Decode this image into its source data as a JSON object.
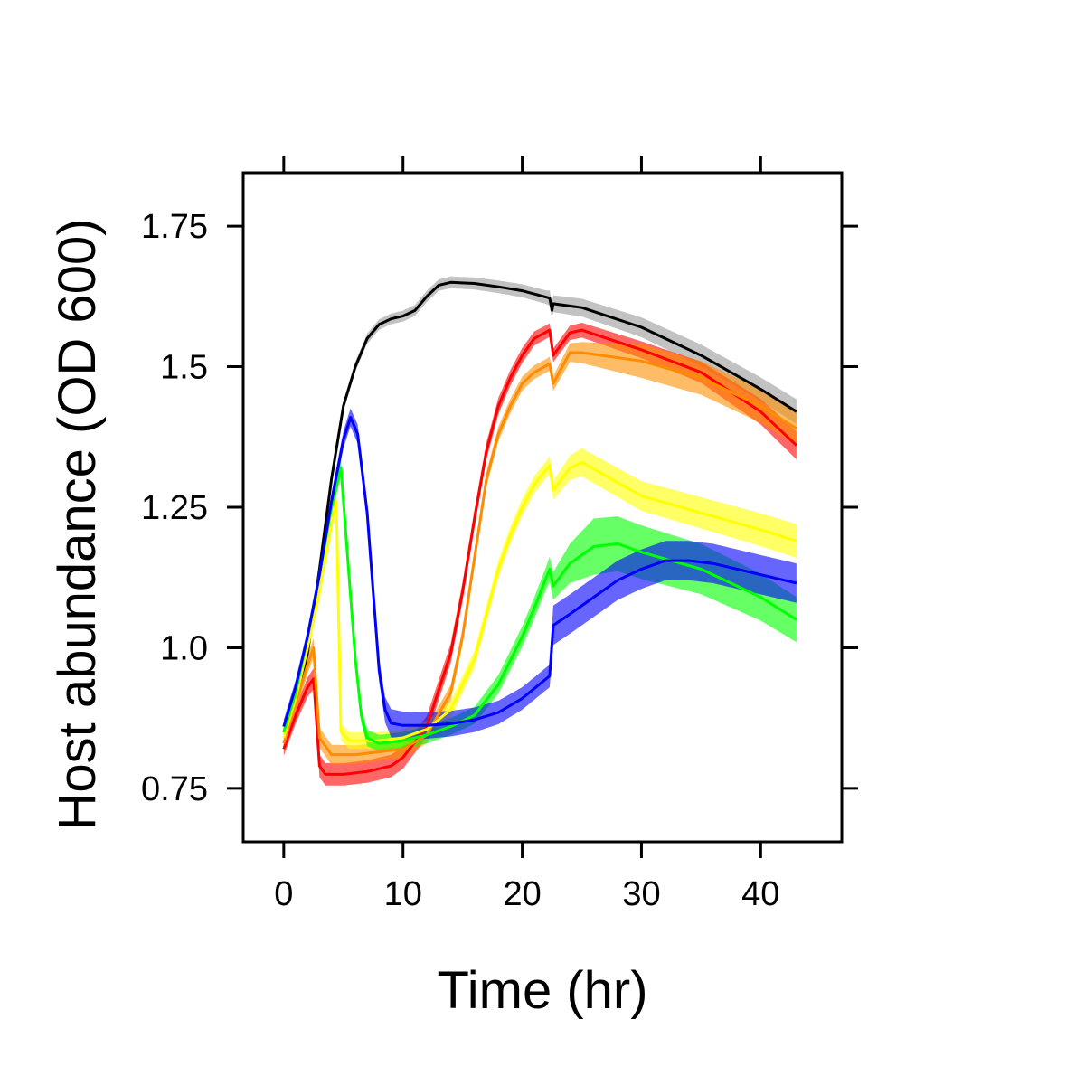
{
  "chart_data": {
    "type": "line",
    "title": "",
    "xlabel": "Time (hr)",
    "ylabel": "Host abundance (OD 600)",
    "xlim": [
      -3.4,
      46.8
    ],
    "ylim": [
      0.655,
      1.845
    ],
    "xticks": [
      0,
      10,
      20,
      30,
      40
    ],
    "xtick_labels": [
      "0",
      "10",
      "20",
      "30",
      "40"
    ],
    "yticks": [
      0.75,
      1.0,
      1.25,
      1.5,
      1.75
    ],
    "ytick_labels": [
      "0.75",
      "1.0",
      "1.25",
      "1.5",
      "1.75"
    ],
    "grid": false,
    "legend": "none",
    "series": [
      {
        "color": "#000000",
        "band_color": "#9a9a9a",
        "points": [
          [
            0,
            0.85
          ],
          [
            1,
            0.9
          ],
          [
            2,
            0.99
          ],
          [
            3,
            1.14
          ],
          [
            4,
            1.3
          ],
          [
            5,
            1.43
          ],
          [
            6,
            1.5
          ],
          [
            7,
            1.55
          ],
          [
            8,
            1.575
          ],
          [
            9,
            1.585
          ],
          [
            10,
            1.59
          ],
          [
            11,
            1.6
          ],
          [
            12,
            1.625
          ],
          [
            13,
            1.645
          ],
          [
            14,
            1.65
          ],
          [
            16,
            1.648
          ],
          [
            18,
            1.642
          ],
          [
            20,
            1.635
          ],
          [
            22.3,
            1.622
          ],
          [
            22.5,
            1.6
          ],
          [
            22.6,
            1.612
          ],
          [
            25,
            1.605
          ],
          [
            30,
            1.57
          ],
          [
            35,
            1.52
          ],
          [
            40,
            1.46
          ],
          [
            43,
            1.42
          ]
        ],
        "band": [
          [
            0,
            0.008
          ],
          [
            12,
            0.01
          ],
          [
            22,
            0.012
          ],
          [
            22.6,
            0.015
          ],
          [
            43,
            0.022
          ]
        ]
      },
      {
        "color": "#ff0000",
        "band_color": "#ff0000",
        "points": [
          [
            0,
            0.82
          ],
          [
            1,
            0.88
          ],
          [
            2,
            0.93
          ],
          [
            2.5,
            0.945
          ],
          [
            3,
            0.79
          ],
          [
            3.5,
            0.775
          ],
          [
            5,
            0.775
          ],
          [
            7,
            0.78
          ],
          [
            9,
            0.79
          ],
          [
            10,
            0.805
          ],
          [
            12,
            0.86
          ],
          [
            14,
            0.99
          ],
          [
            15,
            1.1
          ],
          [
            16,
            1.23
          ],
          [
            17,
            1.35
          ],
          [
            18,
            1.43
          ],
          [
            19,
            1.48
          ],
          [
            20,
            1.52
          ],
          [
            21,
            1.55
          ],
          [
            22.3,
            1.565
          ],
          [
            22.6,
            1.52
          ],
          [
            24,
            1.56
          ],
          [
            25,
            1.565
          ],
          [
            30,
            1.53
          ],
          [
            35,
            1.49
          ],
          [
            40,
            1.42
          ],
          [
            43,
            1.36
          ]
        ],
        "band": [
          [
            0,
            0.012
          ],
          [
            3,
            0.02
          ],
          [
            10,
            0.02
          ],
          [
            22,
            0.012
          ],
          [
            30,
            0.015
          ],
          [
            43,
            0.025
          ]
        ]
      },
      {
        "color": "#ff8c00",
        "band_color": "#ff9000",
        "points": [
          [
            0,
            0.83
          ],
          [
            1,
            0.9
          ],
          [
            2,
            0.97
          ],
          [
            2.5,
            1.0
          ],
          [
            3,
            0.84
          ],
          [
            4,
            0.81
          ],
          [
            6,
            0.81
          ],
          [
            8,
            0.815
          ],
          [
            10,
            0.82
          ],
          [
            12,
            0.845
          ],
          [
            14,
            0.92
          ],
          [
            15,
            1.02
          ],
          [
            16,
            1.16
          ],
          [
            17,
            1.3
          ],
          [
            18,
            1.38
          ],
          [
            19,
            1.43
          ],
          [
            20,
            1.47
          ],
          [
            21,
            1.49
          ],
          [
            22.3,
            1.505
          ],
          [
            22.6,
            1.47
          ],
          [
            24,
            1.525
          ],
          [
            25,
            1.525
          ],
          [
            30,
            1.51
          ],
          [
            35,
            1.48
          ],
          [
            40,
            1.43
          ],
          [
            43,
            1.39
          ]
        ],
        "band": [
          [
            0,
            0.012
          ],
          [
            3,
            0.018
          ],
          [
            10,
            0.015
          ],
          [
            22,
            0.012
          ],
          [
            30,
            0.03
          ],
          [
            43,
            0.03
          ]
        ]
      },
      {
        "color": "#ffff00",
        "band_color": "#ffff00",
        "points": [
          [
            0,
            0.84
          ],
          [
            1,
            0.91
          ],
          [
            2,
            1.0
          ],
          [
            3,
            1.1
          ],
          [
            4,
            1.22
          ],
          [
            4.4,
            1.26
          ],
          [
            4.8,
            0.85
          ],
          [
            5.5,
            0.835
          ],
          [
            8,
            0.835
          ],
          [
            10,
            0.84
          ],
          [
            12,
            0.855
          ],
          [
            14,
            0.89
          ],
          [
            16,
            0.98
          ],
          [
            17,
            1.06
          ],
          [
            18,
            1.14
          ],
          [
            19,
            1.2
          ],
          [
            20,
            1.25
          ],
          [
            21,
            1.29
          ],
          [
            22.3,
            1.325
          ],
          [
            22.6,
            1.28
          ],
          [
            24,
            1.32
          ],
          [
            25,
            1.33
          ],
          [
            30,
            1.27
          ],
          [
            35,
            1.24
          ],
          [
            40,
            1.21
          ],
          [
            43,
            1.19
          ]
        ],
        "band": [
          [
            0,
            0.012
          ],
          [
            5,
            0.015
          ],
          [
            12,
            0.015
          ],
          [
            22,
            0.015
          ],
          [
            25,
            0.025
          ],
          [
            43,
            0.03
          ]
        ]
      },
      {
        "color": "#00ff00",
        "band_color": "#00ff00",
        "points": [
          [
            0,
            0.85
          ],
          [
            1,
            0.92
          ],
          [
            2,
            1.02
          ],
          [
            3,
            1.13
          ],
          [
            4,
            1.25
          ],
          [
            4.8,
            1.32
          ],
          [
            5.5,
            1.12
          ],
          [
            6,
            0.98
          ],
          [
            6.5,
            0.88
          ],
          [
            7,
            0.84
          ],
          [
            8,
            0.83
          ],
          [
            10,
            0.835
          ],
          [
            12,
            0.845
          ],
          [
            14,
            0.86
          ],
          [
            16,
            0.88
          ],
          [
            18,
            0.935
          ],
          [
            20,
            1.02
          ],
          [
            21,
            1.07
          ],
          [
            22.3,
            1.14
          ],
          [
            22.6,
            1.11
          ],
          [
            24,
            1.15
          ],
          [
            26,
            1.18
          ],
          [
            28,
            1.185
          ],
          [
            30,
            1.17
          ],
          [
            35,
            1.14
          ],
          [
            40,
            1.09
          ],
          [
            43,
            1.05
          ]
        ],
        "band": [
          [
            0,
            0.012
          ],
          [
            8,
            0.015
          ],
          [
            16,
            0.015
          ],
          [
            22,
            0.02
          ],
          [
            26,
            0.05
          ],
          [
            43,
            0.04
          ]
        ]
      },
      {
        "color": "#0000ff",
        "band_color": "#0000ff",
        "points": [
          [
            0,
            0.86
          ],
          [
            1,
            0.93
          ],
          [
            2,
            1.02
          ],
          [
            3,
            1.13
          ],
          [
            4,
            1.26
          ],
          [
            5,
            1.37
          ],
          [
            5.6,
            1.41
          ],
          [
            6.2,
            1.38
          ],
          [
            7,
            1.24
          ],
          [
            7.5,
            1.1
          ],
          [
            8,
            0.96
          ],
          [
            8.5,
            0.89
          ],
          [
            9,
            0.866
          ],
          [
            10,
            0.862
          ],
          [
            12,
            0.862
          ],
          [
            14,
            0.865
          ],
          [
            16,
            0.872
          ],
          [
            18,
            0.885
          ],
          [
            20,
            0.91
          ],
          [
            22.3,
            0.95
          ],
          [
            22.6,
            1.04
          ],
          [
            24,
            1.06
          ],
          [
            26,
            1.09
          ],
          [
            28,
            1.12
          ],
          [
            30,
            1.14
          ],
          [
            32,
            1.155
          ],
          [
            34,
            1.155
          ],
          [
            36,
            1.15
          ],
          [
            40,
            1.13
          ],
          [
            43,
            1.115
          ]
        ],
        "band": [
          [
            0,
            0.012
          ],
          [
            5,
            0.015
          ],
          [
            8,
            0.02
          ],
          [
            9,
            0.025
          ],
          [
            20,
            0.02
          ],
          [
            22.3,
            0.02
          ],
          [
            22.6,
            0.035
          ],
          [
            30,
            0.035
          ],
          [
            43,
            0.035
          ]
        ]
      }
    ]
  }
}
